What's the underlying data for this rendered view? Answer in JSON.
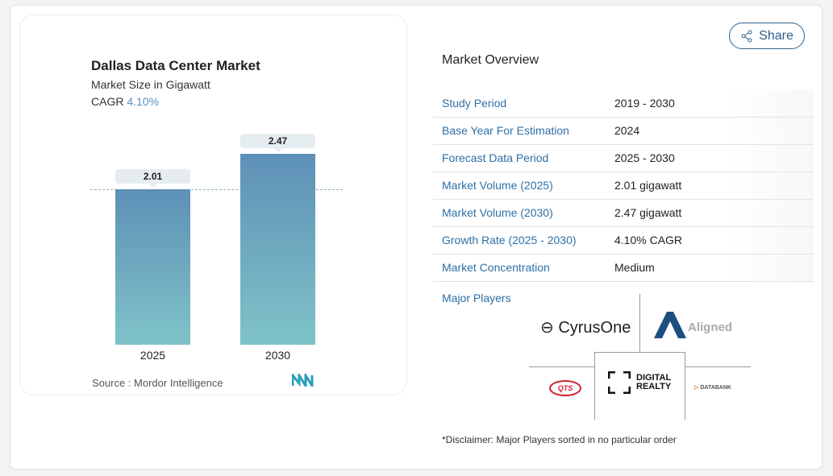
{
  "chart_data": {
    "type": "bar",
    "title": "Dallas Data Center Market",
    "subtitle": "Market Size in Gigawatt",
    "cagr_label": "CAGR",
    "cagr_value": "4.10%",
    "categories": [
      "2025",
      "2030"
    ],
    "values": [
      2.01,
      2.47
    ],
    "value_labels": [
      "2.01",
      "2.47"
    ],
    "bar_color_top": "#5e90b7",
    "bar_color_bottom": "#7fc3c8",
    "source": "Source :  Mordor Intelligence"
  },
  "share_label": "Share",
  "overview": {
    "title": "Market Overview",
    "rows": [
      {
        "k": "Study Period",
        "v": "2019 - 2030"
      },
      {
        "k": "Base Year For Estimation",
        "v": "2024"
      },
      {
        "k": "Forecast Data Period",
        "v": "2025 - 2030"
      },
      {
        "k": "Market Volume (2025)",
        "v": "2.01 gigawatt"
      },
      {
        "k": "Market Volume (2030)",
        "v": "2.47 gigawatt"
      },
      {
        "k": "Growth Rate (2025 - 2030)",
        "v": "4.10% CAGR"
      },
      {
        "k": "Market Concentration",
        "v": "Medium"
      }
    ]
  },
  "players": {
    "title": "Major Players",
    "logos": [
      "CyrusOne",
      "Aligned",
      "DIGITAL REALTY",
      "QTS",
      "DATABANK"
    ]
  },
  "disclaimer": "*Disclaimer: Major Players sorted in no particular order"
}
